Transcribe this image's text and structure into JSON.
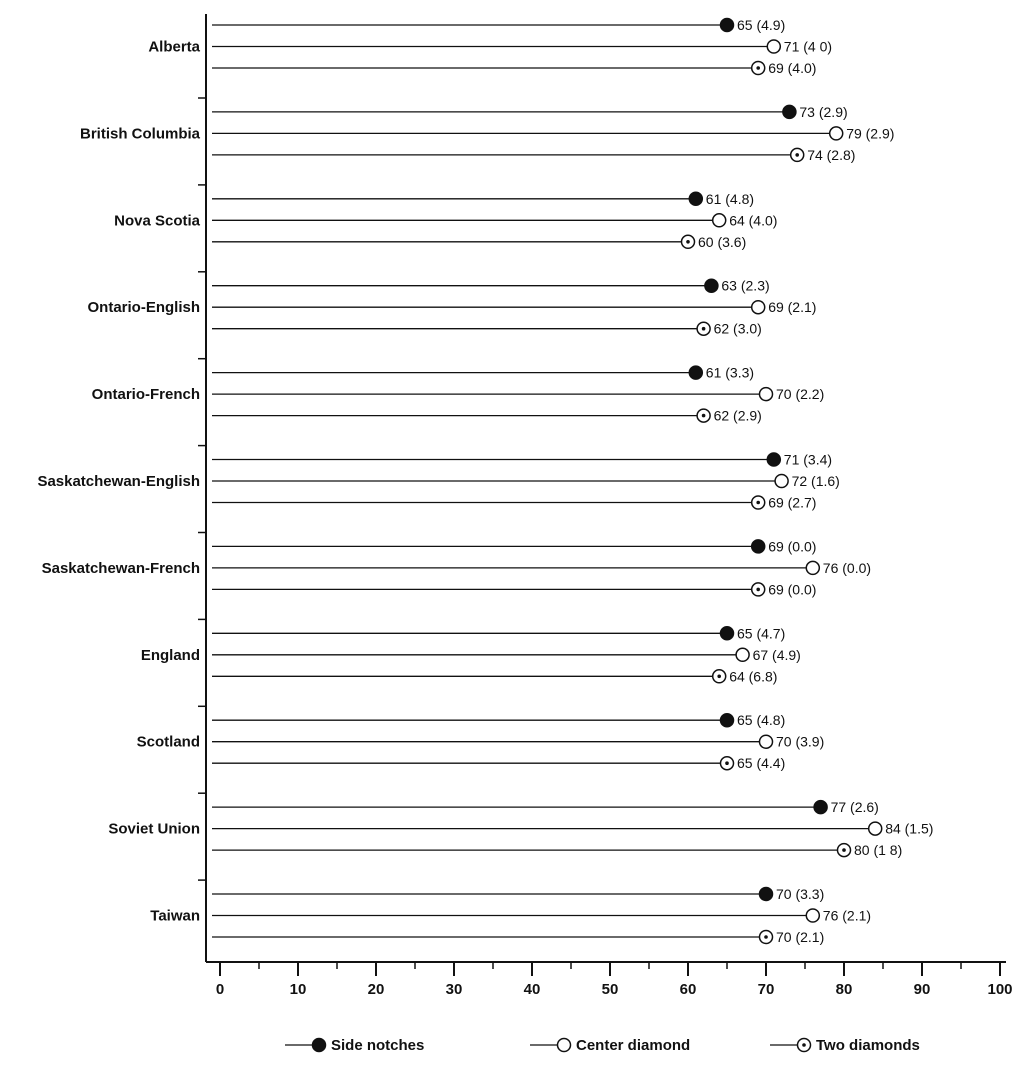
{
  "chart_data": {
    "type": "bar",
    "orientation": "horizontal",
    "marker_style": "lollipop",
    "xlim": [
      0,
      100
    ],
    "x_ticks": [
      "0",
      "10",
      "20",
      "30",
      "40",
      "50",
      "60",
      "70",
      "80",
      "90",
      "100"
    ],
    "grid": false,
    "legend_position": "bottom",
    "categories": [
      "Alberta",
      "British Columbia",
      "Nova Scotia",
      "Ontario-English",
      "Ontario-French",
      "Saskatchewan-English",
      "Saskatchewan-French",
      "England",
      "Scotland",
      "Soviet Union",
      "Taiwan"
    ],
    "series": [
      {
        "name": "Side notches",
        "marker": "filled-circle",
        "values": [
          65,
          73,
          61,
          63,
          61,
          71,
          69,
          65,
          65,
          77,
          70
        ],
        "labels": [
          "65 (4.9)",
          "73 (2.9)",
          "61 (4.8)",
          "63 (2.3)",
          "61 (3.3)",
          "71 (3.4)",
          "69 (0.0)",
          "65 (4.7)",
          "65 (4.8)",
          "77 (2.6)",
          "70 (3.3)"
        ]
      },
      {
        "name": "Center diamond",
        "marker": "open-circle",
        "values": [
          71,
          79,
          64,
          69,
          70,
          72,
          76,
          67,
          70,
          84,
          76
        ],
        "labels": [
          "71 (4 0)",
          "79 (2.9)",
          "64 (4.0)",
          "69 (2.1)",
          "70 (2.2)",
          "72 (1.6)",
          "76 (0.0)",
          "67 (4.9)",
          "70 (3.9)",
          "84 (1.5)",
          "76 (2.1)"
        ]
      },
      {
        "name": "Two diamonds",
        "marker": "dotted-circle",
        "values": [
          69,
          74,
          60,
          62,
          62,
          69,
          69,
          64,
          65,
          80,
          70
        ],
        "labels": [
          "69 (4.0)",
          "74 (2.8)",
          "60 (3.6)",
          "62 (3.0)",
          "62 (2.9)",
          "69 (2.7)",
          "69 (0.0)",
          "64 (6.8)",
          "65 (4.4)",
          "80 (1 8)",
          "70 (2.1)"
        ]
      }
    ]
  }
}
